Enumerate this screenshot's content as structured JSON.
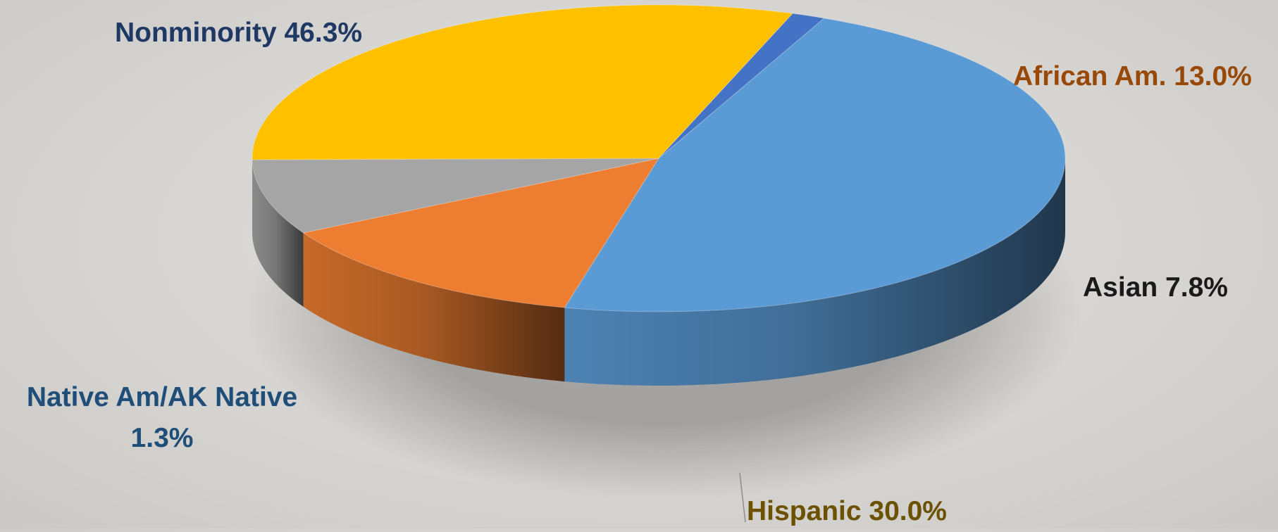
{
  "chart_data": {
    "type": "pie",
    "style": "3d",
    "legend": "none",
    "series": [
      {
        "values": [
          46.3,
          13.0,
          7.8,
          30.0,
          1.3
        ],
        "categories": [
          "Nonminority",
          "African Am.",
          "Asian",
          "Hispanic",
          "Native Am/AK Native"
        ]
      }
    ],
    "slices": [
      {
        "category": "Nonminority",
        "value": 46.3,
        "label": "Nonminority 46.3%",
        "color": "#5B9BD5"
      },
      {
        "category": "African Am.",
        "value": 13.0,
        "label": "African Am. 13.0%",
        "color": "#ED7D31"
      },
      {
        "category": "Asian",
        "value": 7.8,
        "label": "Asian 7.8%",
        "color": "#A5A5A5"
      },
      {
        "category": "Hispanic",
        "value": 30.0,
        "label": "Hispanic 30.0%",
        "color": "#FFC000"
      },
      {
        "category": "Native Am/AK Native",
        "value": 1.3,
        "label": "Native Am/AK Native 1.3%",
        "color": "#4472C4"
      }
    ]
  }
}
